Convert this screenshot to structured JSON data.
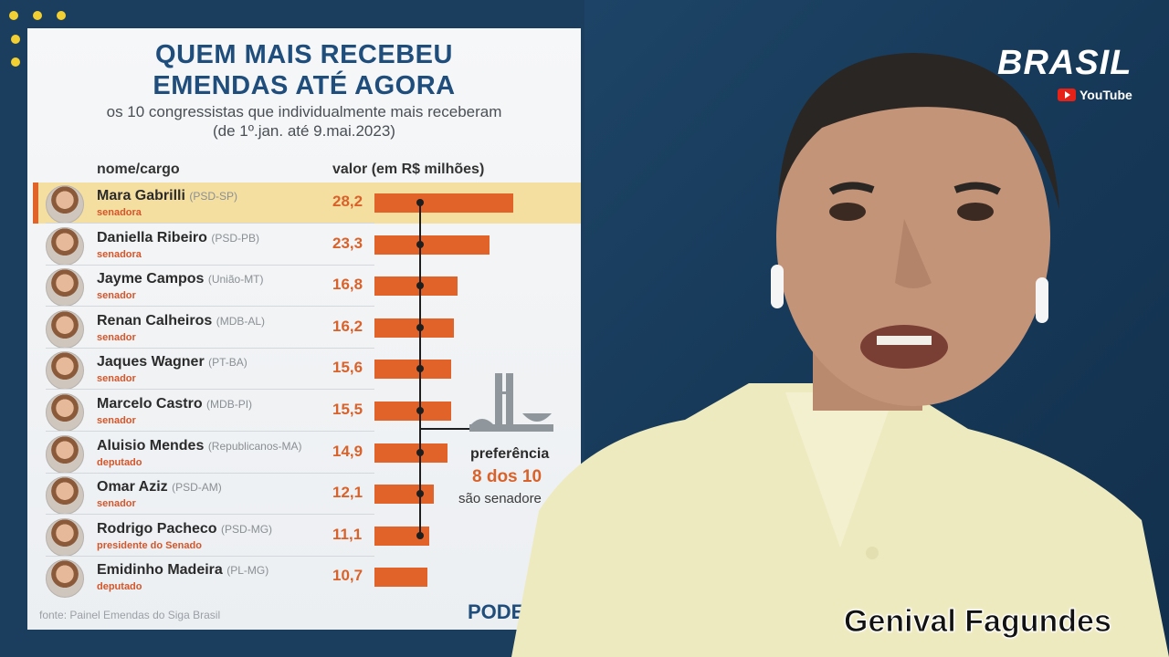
{
  "infographic": {
    "title_line1": "QUEM MAIS RECEBEU",
    "title_line2": "EMENDAS ATÉ AGORA",
    "subtitle_line1": "os 10 congressistas que individualmente mais receberam",
    "subtitle_line2": "(de 1º.jan. até 9.mai.2023)",
    "col_name": "nome/cargo",
    "col_value": "valor (em R$ milhões)",
    "rows": [
      {
        "name": "Mara Gabrilli",
        "party": "(PSD-SP)",
        "role": "senadora",
        "value_label": "28,2",
        "value": 28.2,
        "highlight": true
      },
      {
        "name": "Daniella Ribeiro",
        "party": "(PSD-PB)",
        "role": "senadora",
        "value_label": "23,3",
        "value": 23.3,
        "highlight": false
      },
      {
        "name": "Jayme Campos",
        "party": "(União-MT)",
        "role": "senador",
        "value_label": "16,8",
        "value": 16.8,
        "highlight": false
      },
      {
        "name": "Renan Calheiros",
        "party": "(MDB-AL)",
        "role": "senador",
        "value_label": "16,2",
        "value": 16.2,
        "highlight": false
      },
      {
        "name": "Jaques Wagner",
        "party": "(PT-BA)",
        "role": "senador",
        "value_label": "15,6",
        "value": 15.6,
        "highlight": false
      },
      {
        "name": "Marcelo Castro",
        "party": "(MDB-PI)",
        "role": "senador",
        "value_label": "15,5",
        "value": 15.5,
        "highlight": false
      },
      {
        "name": "Aluisio Mendes",
        "party": "(Republicanos-MA)",
        "role": "deputado",
        "value_label": "14,9",
        "value": 14.9,
        "highlight": false
      },
      {
        "name": "Omar Aziz",
        "party": "(PSD-AM)",
        "role": "senador",
        "value_label": "12,1",
        "value": 12.1,
        "highlight": false
      },
      {
        "name": "Rodrigo Pacheco",
        "party": "(PSD-MG)",
        "role": "presidente do Senado",
        "value_label": "11,1",
        "value": 11.1,
        "highlight": false
      },
      {
        "name": "Emidinho Madeira",
        "party": "(PL-MG)",
        "role": "deputado",
        "value_label": "10,7",
        "value": 10.7,
        "highlight": false
      }
    ],
    "pref_head": "preferência",
    "pref_big": "8 dos 10",
    "pref_sub": "são senadore",
    "source": "fonte: Painel Emendas do Siga Brasil",
    "brand": "PODE",
    "bar_color": "#e2632a"
  },
  "branding": {
    "channel": "BRASIL",
    "platform": "YouTube"
  },
  "caption": "Genival Fagundes",
  "chart_data": {
    "type": "bar",
    "categories": [
      "Mara Gabrilli",
      "Daniella Ribeiro",
      "Jayme Campos",
      "Renan Calheiros",
      "Jaques Wagner",
      "Marcelo Castro",
      "Aluisio Mendes",
      "Omar Aziz",
      "Rodrigo Pacheco",
      "Emidinho Madeira"
    ],
    "values": [
      28.2,
      23.3,
      16.8,
      16.2,
      15.6,
      15.5,
      14.9,
      12.1,
      11.1,
      10.7
    ],
    "title": "QUEM MAIS RECEBEU EMENDAS ATÉ AGORA",
    "subtitle": "os 10 congressistas que individualmente mais receberam (de 1º.jan. até 9.mai.2023)",
    "xlabel": "valor (em R$ milhões)",
    "ylabel": "nome/cargo",
    "orientation": "horizontal"
  }
}
